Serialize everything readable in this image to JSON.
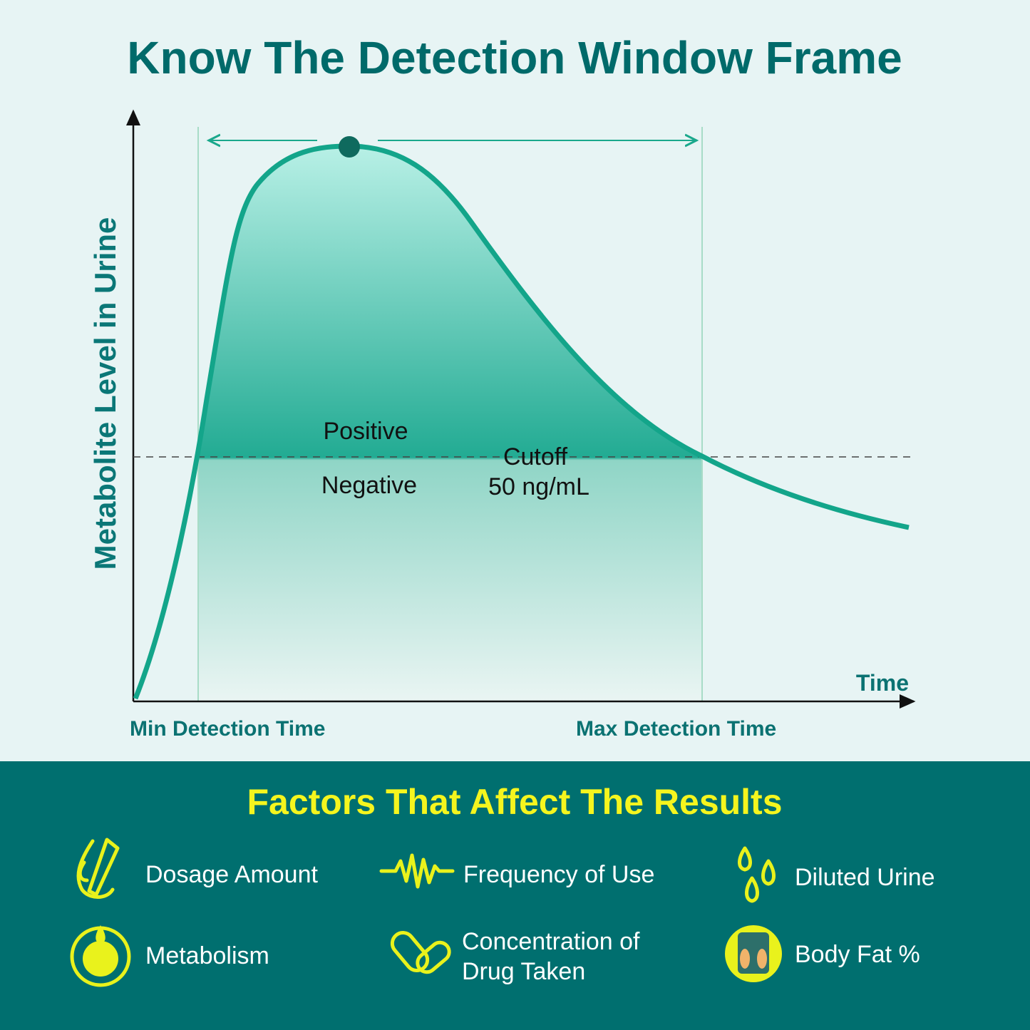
{
  "header": {
    "title": "Know The Detection Window Frame"
  },
  "diagram": {
    "y_axis_label": "Metabolite Level in Urine",
    "x_axis_label": "Time",
    "min_label": "Min Detection Time",
    "max_label": "Max Detection Time",
    "positive_label": "Positive",
    "negative_label": "Negative",
    "cutoff_label": [
      "Cutoff",
      "50 ng/mL"
    ]
  },
  "factors": {
    "title": "Factors That Affect The Results",
    "items": [
      {
        "lines": [
          "Dosage Amount"
        ]
      },
      {
        "lines": [
          "Frequency of Use"
        ]
      },
      {
        "lines": [
          "Diluted Urine"
        ]
      },
      {
        "lines": [
          "Metabolism"
        ]
      },
      {
        "lines": [
          "Concentration of",
          "Drug Taken"
        ]
      },
      {
        "lines": [
          "Body Fat %"
        ]
      }
    ]
  }
}
